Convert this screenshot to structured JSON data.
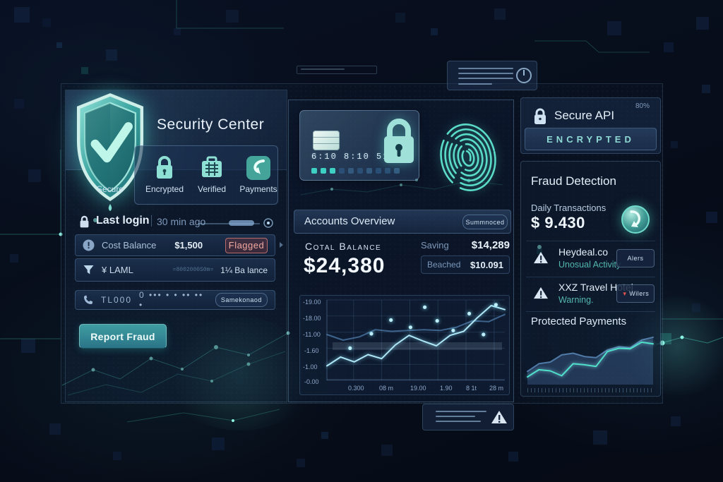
{
  "theme": {
    "bg": "#070d1a",
    "accent": "#54e0c7",
    "danger": "#e07a70"
  },
  "security_center": {
    "title": "Security Center",
    "features": [
      {
        "icon": "shield-check-icon",
        "label": "Secure"
      },
      {
        "icon": "lock-icon",
        "label": "Encrypted"
      },
      {
        "icon": "briefcase-icon",
        "label": "Verified"
      },
      {
        "icon": "payments-arrow-icon",
        "label": "Payments"
      }
    ],
    "last_login": {
      "label": "Last login",
      "ago": "30 min ago"
    },
    "accounts": [
      {
        "icon": "alert-circle-icon",
        "label": "Cost Balance",
        "value": "$1,500",
        "badge": "Flagged"
      },
      {
        "icon": "filter-icon",
        "label": "¥ LAML",
        "masked": "=8002000S0m=",
        "value": "1¼ Ba lance"
      },
      {
        "icon": "phone-icon",
        "label": "TL000",
        "masked": "0 ••• • • •• •• •",
        "badge": "Samekonaod"
      }
    ],
    "report_button": "Report Fraud"
  },
  "verification": {
    "card_numbers": "6:10  8:10  5110"
  },
  "accounts_overview": {
    "title": "Accounts Overview",
    "badge": "Summnoced",
    "total_label": "Cotal Balance",
    "total_value": "$24,380",
    "stats": [
      {
        "label": "Saving",
        "value": "$14,289"
      },
      {
        "label": "Beached",
        "value": "$10.091"
      }
    ]
  },
  "secure_api": {
    "title": "Secure API",
    "percent": "80%",
    "status": "ENCRYPTED"
  },
  "fraud_detection": {
    "title": "Fraud Detection",
    "daily_label": "Daily Transactions",
    "daily_value": "$ 9.430",
    "alerts": [
      {
        "name": "Heydeal.co",
        "desc": "Unosual Activity",
        "badge": "Alers"
      },
      {
        "name": "XXZ Travel Hotel",
        "desc": "Warning.",
        "badge": "Wilers"
      }
    ],
    "protected_title": "Protected Payments"
  },
  "chart_data": [
    {
      "type": "line",
      "title": "Accounts Overview balance trend",
      "x_ticks": [
        "0.300",
        "08 m",
        "19.00",
        "1.90",
        "8 1t",
        "28 m"
      ],
      "y_ticks": [
        "-19.00",
        "-18.00",
        "-11.00",
        "-1.60",
        "-1.00",
        "-0.00"
      ],
      "ylim": [
        0,
        100
      ],
      "grid": true,
      "legend": false,
      "series": [
        {
          "name": "balance-primary",
          "color": "#aee7f7",
          "values": [
            18,
            29,
            23,
            32,
            27,
            44,
            56,
            49,
            43,
            56,
            61,
            78,
            93,
            88
          ]
        },
        {
          "name": "balance-secondary",
          "color": "#4d7cab",
          "values": [
            57,
            50,
            54,
            63,
            61,
            62,
            63,
            62,
            66,
            74,
            73,
            82
          ]
        }
      ],
      "scatter": [
        {
          "x": 13,
          "y": 40
        },
        {
          "x": 25,
          "y": 58
        },
        {
          "x": 36,
          "y": 75
        },
        {
          "x": 47,
          "y": 66
        },
        {
          "x": 55,
          "y": 91
        },
        {
          "x": 62,
          "y": 74
        },
        {
          "x": 71,
          "y": 62
        },
        {
          "x": 80,
          "y": 83
        },
        {
          "x": 88,
          "y": 57
        },
        {
          "x": 95,
          "y": 94
        }
      ]
    },
    {
      "type": "area",
      "title": "Protected Payments trend",
      "grid": false,
      "series": [
        {
          "name": "protected-area",
          "color": "#5b88b8",
          "fill": "rgba(75,115,165,0.35)",
          "values": [
            24,
            38,
            41,
            54,
            57,
            51,
            49,
            63,
            69,
            67,
            81,
            86
          ]
        },
        {
          "name": "protected-line",
          "color": "#4fe0c9",
          "values": [
            14,
            27,
            25,
            16,
            38,
            36,
            33,
            60,
            66,
            65,
            77,
            74
          ]
        }
      ]
    }
  ]
}
